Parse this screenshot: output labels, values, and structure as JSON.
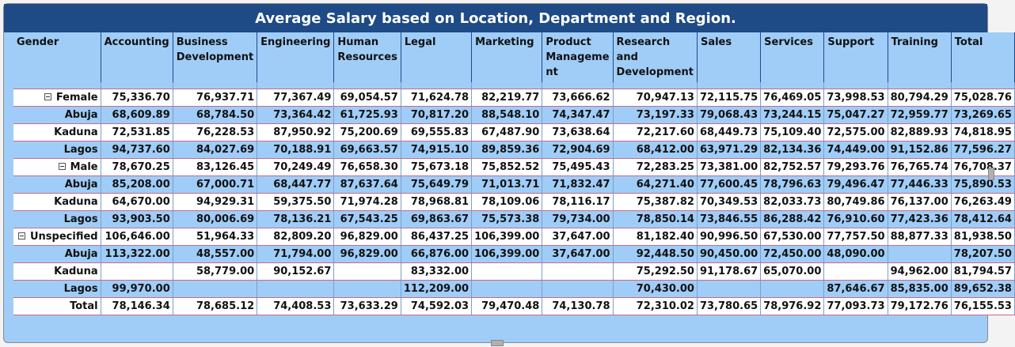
{
  "title": "Average Salary based on Location, Department and Region.",
  "headers": [
    "Gender",
    "Accounting",
    "Business Development",
    "Engineering",
    "Human Resources",
    "Legal",
    "Marketing",
    "Product Manageme nt",
    "Research and Development",
    "Sales",
    "Services",
    "Support",
    "Training",
    "Total"
  ],
  "rows": [
    {
      "kind": "group",
      "label": "Female",
      "values": [
        "75,336.70",
        "76,937.71",
        "77,367.49",
        "69,054.57",
        "71,624.78",
        "82,219.77",
        "73,666.62",
        "70,947.13",
        "72,115.75",
        "76,469.05",
        "73,998.53",
        "80,794.29",
        "75,028.76"
      ]
    },
    {
      "kind": "child",
      "label": "Abuja",
      "values": [
        "68,609.89",
        "68,784.50",
        "73,364.42",
        "61,725.93",
        "70,817.20",
        "88,548.10",
        "74,347.47",
        "73,197.33",
        "79,068.43",
        "73,244.15",
        "75,047.27",
        "72,959.77",
        "73,269.65"
      ]
    },
    {
      "kind": "child",
      "label": "Kaduna",
      "values": [
        "72,531.85",
        "76,228.53",
        "87,950.92",
        "75,200.69",
        "69,555.83",
        "67,487.90",
        "73,638.64",
        "72,217.60",
        "68,449.73",
        "75,109.40",
        "72,575.00",
        "82,889.93",
        "74,818.95"
      ]
    },
    {
      "kind": "child",
      "label": "Lagos",
      "values": [
        "94,737.60",
        "84,027.69",
        "70,188.91",
        "69,663.57",
        "74,915.10",
        "89,859.36",
        "72,904.69",
        "68,412.00",
        "63,971.29",
        "82,134.36",
        "74,449.00",
        "91,152.86",
        "77,596.27"
      ]
    },
    {
      "kind": "group",
      "label": "Male",
      "values": [
        "78,670.25",
        "83,126.45",
        "70,249.49",
        "76,658.30",
        "75,673.18",
        "75,852.52",
        "75,495.43",
        "72,283.25",
        "73,381.00",
        "82,752.57",
        "79,293.76",
        "76,765.74",
        "76,708.37"
      ]
    },
    {
      "kind": "child",
      "label": "Abuja",
      "values": [
        "85,208.00",
        "67,000.71",
        "68,447.77",
        "87,637.64",
        "75,649.79",
        "71,013.71",
        "71,832.47",
        "64,271.40",
        "77,600.45",
        "78,796.63",
        "79,496.47",
        "77,446.33",
        "75,890.53"
      ]
    },
    {
      "kind": "child",
      "label": "Kaduna",
      "values": [
        "64,670.00",
        "94,929.31",
        "59,375.50",
        "71,974.28",
        "78,968.81",
        "78,109.06",
        "78,116.17",
        "75,387.82",
        "70,349.53",
        "82,033.73",
        "80,749.86",
        "76,137.00",
        "76,263.49"
      ]
    },
    {
      "kind": "child",
      "label": "Lagos",
      "values": [
        "93,903.50",
        "80,006.69",
        "78,136.21",
        "67,543.25",
        "69,863.67",
        "75,573.38",
        "79,734.00",
        "78,850.14",
        "73,846.55",
        "86,288.42",
        "76,910.60",
        "77,423.36",
        "78,412.64"
      ]
    },
    {
      "kind": "group",
      "label": "Unspecified",
      "values": [
        "106,646.00",
        "51,964.33",
        "82,809.20",
        "96,829.00",
        "86,437.25",
        "106,399.00",
        "37,647.00",
        "81,182.40",
        "90,996.50",
        "67,530.00",
        "77,757.50",
        "88,877.33",
        "81,938.50"
      ]
    },
    {
      "kind": "child",
      "label": "Abuja",
      "values": [
        "113,322.00",
        "48,557.00",
        "71,794.00",
        "96,829.00",
        "66,876.00",
        "106,399.00",
        "37,647.00",
        "92,448.50",
        "90,450.00",
        "72,450.00",
        "48,090.00",
        "",
        "78,207.50"
      ]
    },
    {
      "kind": "child",
      "label": "Kaduna",
      "values": [
        "",
        "58,779.00",
        "90,152.67",
        "",
        "83,332.00",
        "",
        "",
        "75,292.50",
        "91,178.67",
        "65,070.00",
        "",
        "94,962.00",
        "81,794.57"
      ]
    },
    {
      "kind": "child",
      "label": "Lagos",
      "values": [
        "99,970.00",
        "",
        "",
        "",
        "112,209.00",
        "",
        "",
        "70,430.00",
        "",
        "",
        "87,646.67",
        "85,835.00",
        "89,652.38"
      ]
    },
    {
      "kind": "total",
      "label": "Total",
      "values": [
        "78,146.34",
        "78,685.12",
        "74,408.53",
        "73,633.29",
        "74,592.03",
        "79,470.48",
        "74,130.78",
        "72,310.02",
        "73,780.65",
        "78,976.92",
        "77,093.73",
        "79,172.76",
        "76,155.53"
      ]
    }
  ]
}
